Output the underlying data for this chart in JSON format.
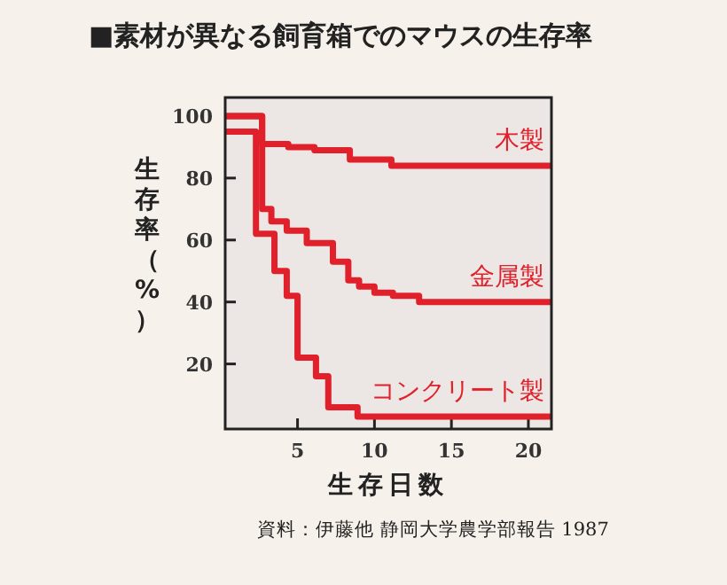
{
  "chart_data": {
    "type": "step",
    "title": "■素材が異なる飼育箱でのマウスの生存率",
    "xlabel": "生存日数",
    "ylabel": "生存率（%）",
    "annotations": [
      "資料：伊藤他 静岡大学農学部報告 1987"
    ],
    "xlim": [
      0.3,
      21.5
    ],
    "ylim": [
      -1,
      106
    ],
    "xticks": [
      5,
      10,
      15,
      20
    ],
    "yticks": [
      20,
      40,
      60,
      80,
      100
    ],
    "grid": false,
    "legend": false,
    "line_style": "solid",
    "series": [
      {
        "name": "木製",
        "color": "#e0202a",
        "x": [
          0.3,
          2.7,
          4.4,
          6.1,
          8.4,
          11.1,
          21.5
        ],
        "values": [
          100,
          91,
          90,
          89,
          86,
          84,
          84
        ]
      },
      {
        "name": "金属製",
        "color": "#e0202a",
        "x": [
          0.3,
          2.7,
          3.3,
          4.3,
          5.6,
          7.3,
          8.3,
          9.0,
          10.0,
          11.2,
          12.9,
          21.5
        ],
        "values": [
          100,
          70,
          66,
          63,
          59,
          53,
          47,
          45,
          43,
          42,
          40,
          40
        ]
      },
      {
        "name": "コンクリート製",
        "color": "#e0202a",
        "x": [
          0.3,
          2.3,
          3.5,
          4.3,
          5.0,
          6.2,
          7.0,
          8.9,
          21.5
        ],
        "values": [
          95,
          62,
          50,
          42,
          22,
          16,
          6,
          3,
          3
        ]
      }
    ]
  }
}
